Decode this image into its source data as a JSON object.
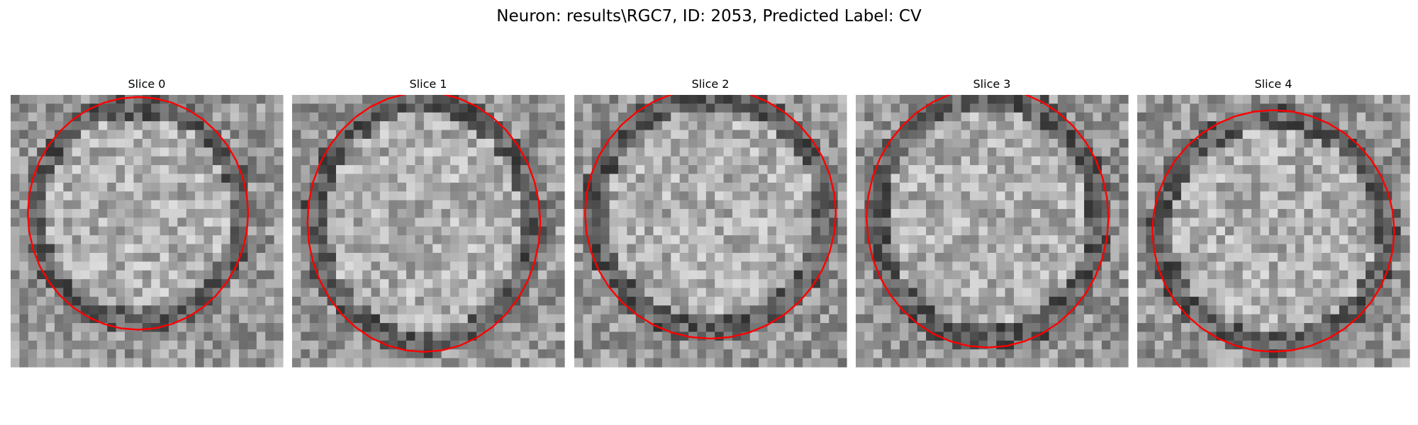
{
  "figure": {
    "suptitle": "Neuron: results\\RGC7, ID: 2053, Predicted Label: CV",
    "colormap": "gray",
    "contour_color": "#ff0000"
  },
  "slices": [
    {
      "title": "Slice 0"
    },
    {
      "title": "Slice 1"
    },
    {
      "title": "Slice 2"
    },
    {
      "title": "Slice 3"
    },
    {
      "title": "Slice 4"
    }
  ]
}
